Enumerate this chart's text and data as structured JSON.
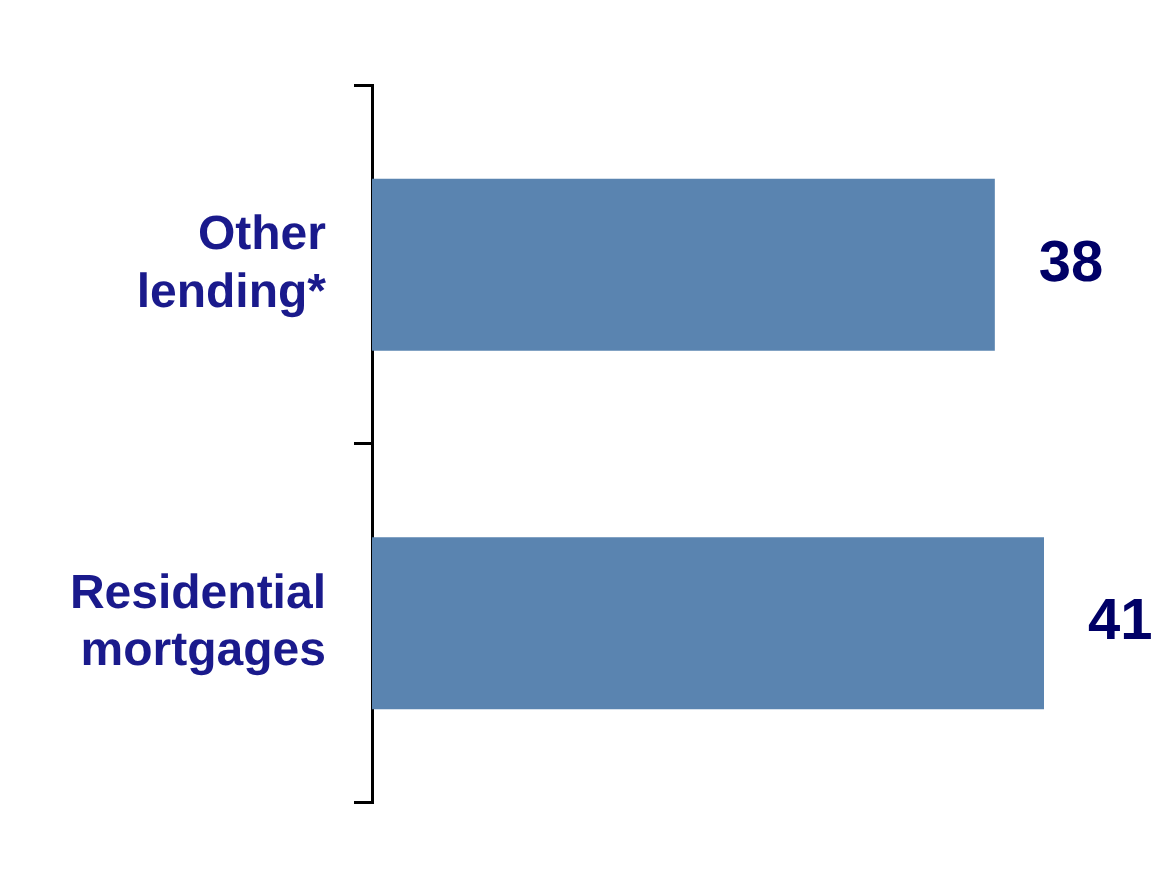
{
  "chart_data": {
    "type": "bar",
    "orientation": "horizontal",
    "categories": [
      "Other lending*",
      "Residential mortgages"
    ],
    "values": [
      38,
      41
    ],
    "color": "#5a84b0",
    "data_labels": true,
    "legend": false
  }
}
